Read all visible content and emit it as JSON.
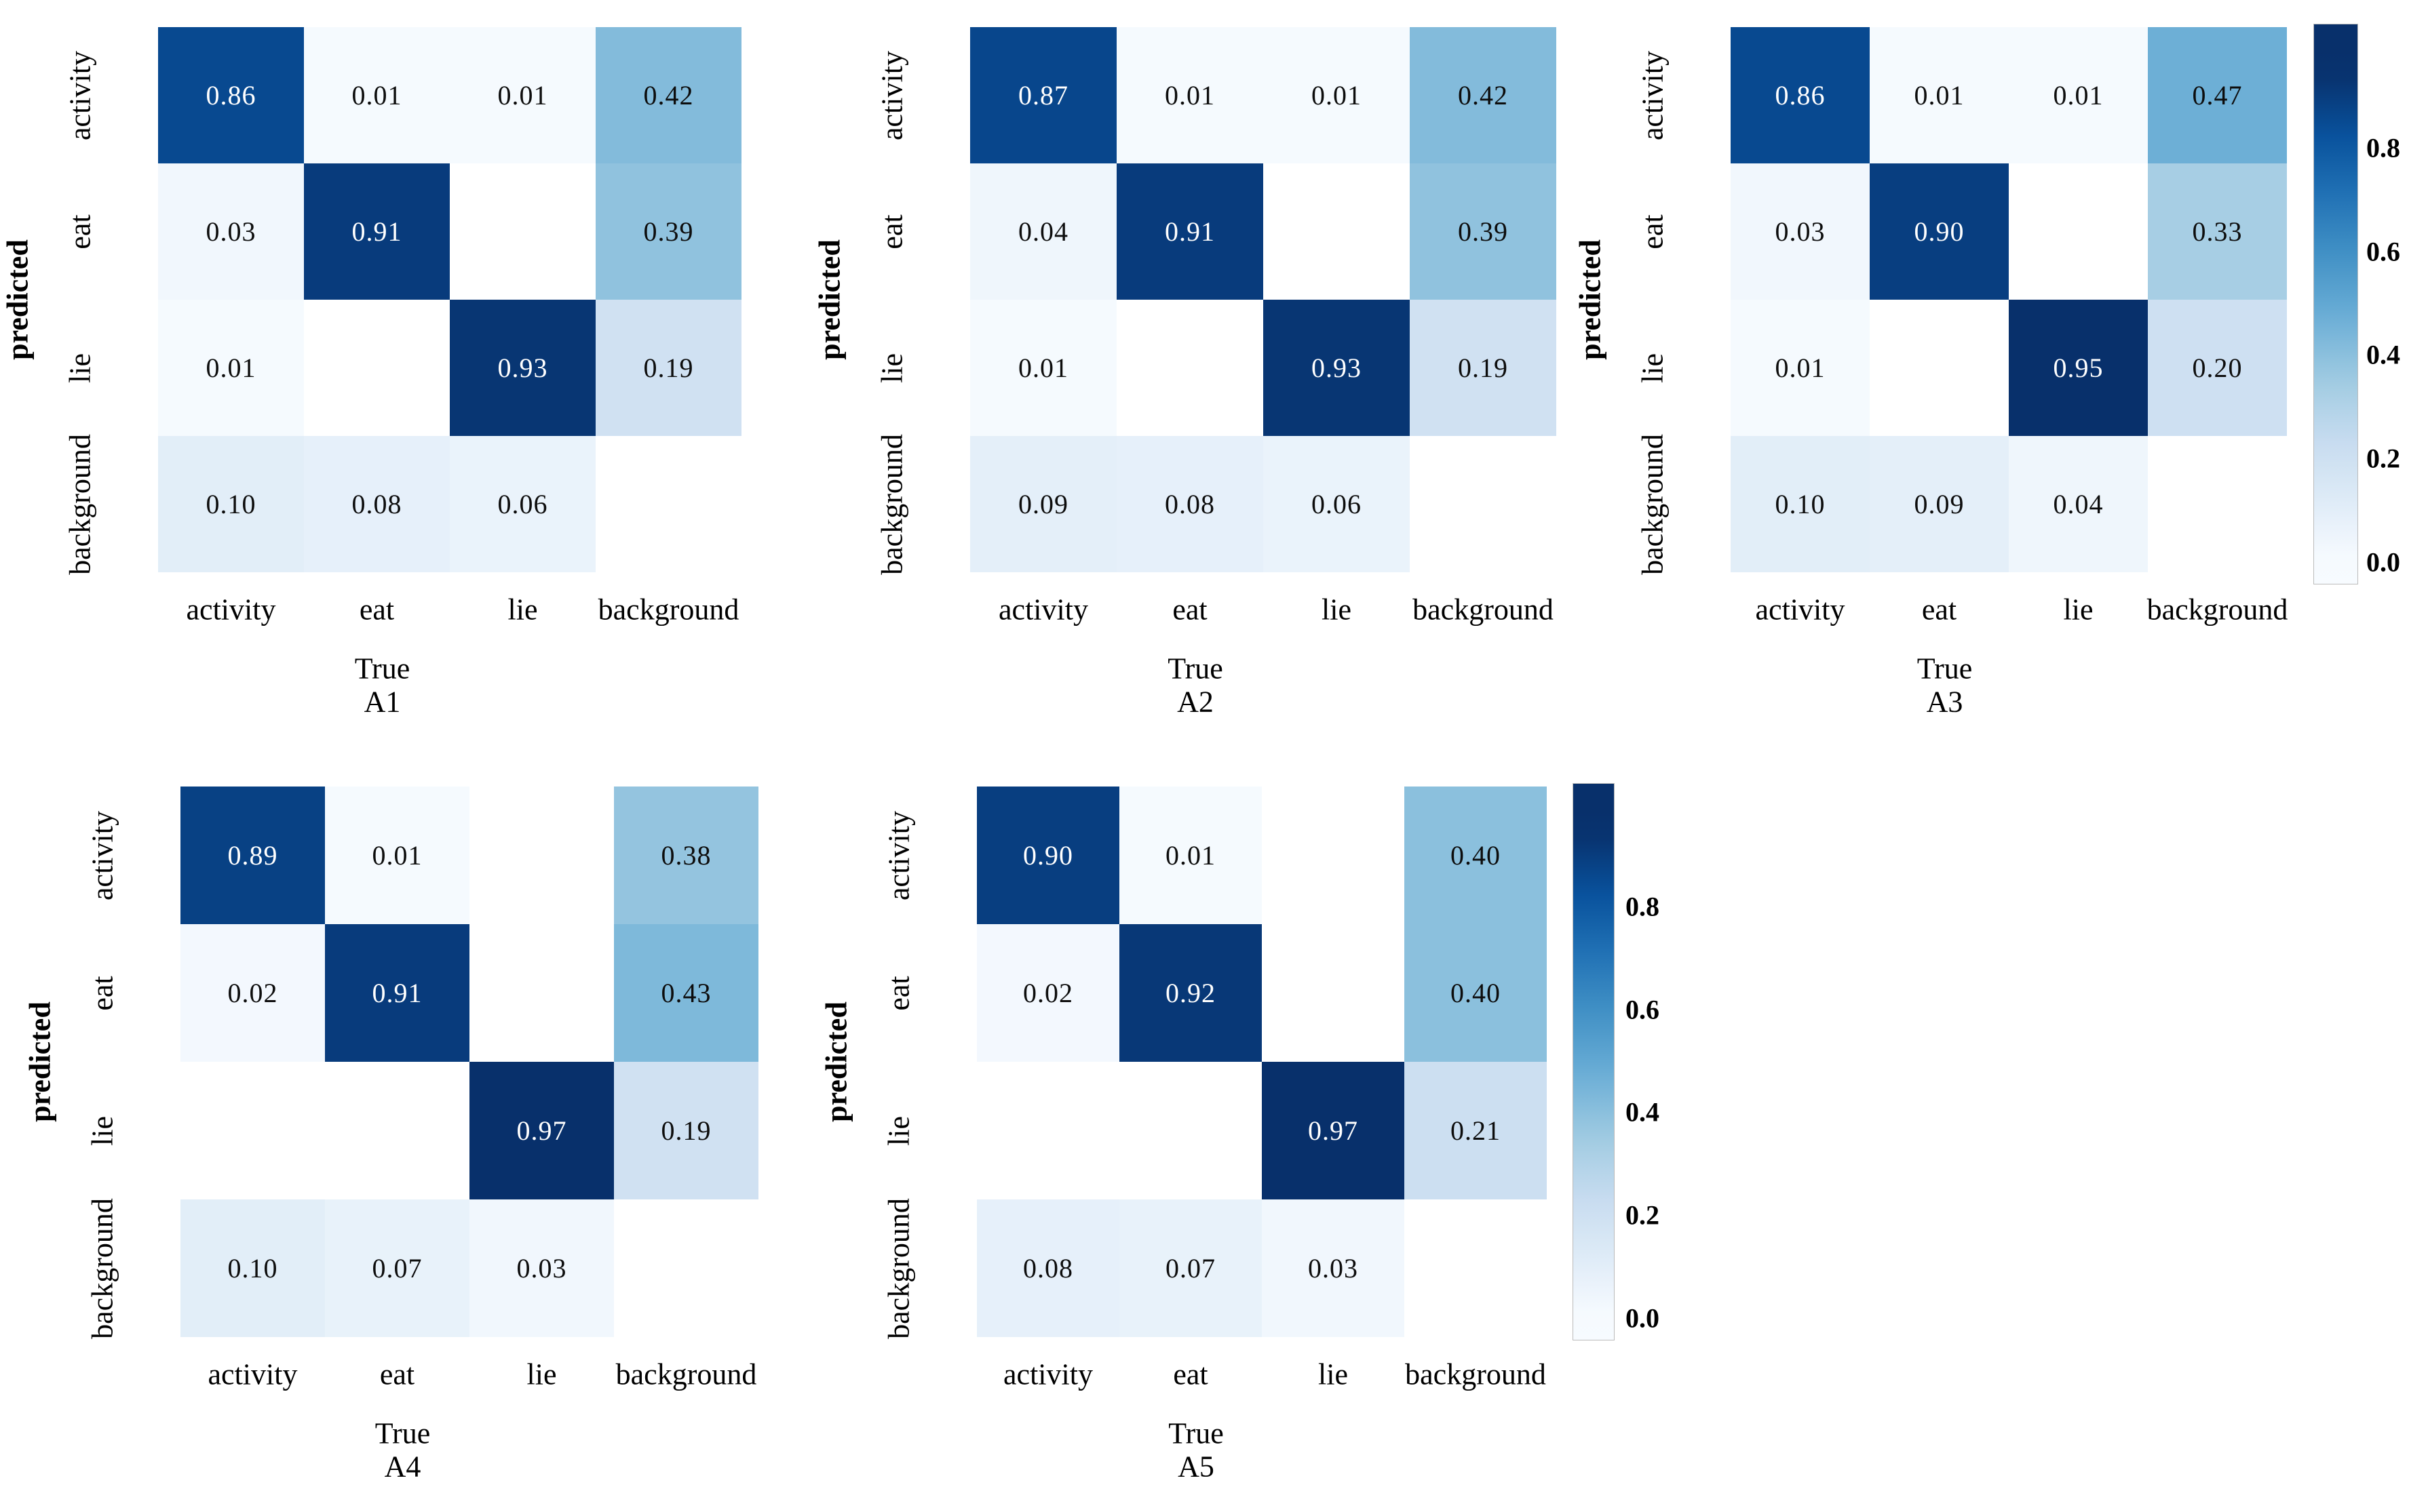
{
  "figure": {
    "type": "confusion-matrix-grid",
    "x_axis_label": "True",
    "y_axis_label": "predicted",
    "categories": [
      "activity",
      "eat",
      "lie",
      "background"
    ],
    "colorbar_ticks": [
      "0.8",
      "0.6",
      "0.4",
      "0.2",
      "0.0"
    ],
    "colormap": "Blues",
    "accent_dark_blue": "#08306b",
    "accent_light_blue": "#f7fbff"
  },
  "chart_data": [
    {
      "type": "heatmap",
      "title": "A1",
      "xlabel": "True",
      "ylabel": "predicted",
      "x_categories": [
        "activity",
        "eat",
        "lie",
        "background"
      ],
      "y_categories": [
        "activity",
        "eat",
        "lie",
        "background"
      ],
      "values": [
        [
          0.86,
          0.01,
          0.01,
          0.42
        ],
        [
          0.03,
          0.91,
          null,
          0.39
        ],
        [
          0.01,
          null,
          0.93,
          0.19
        ],
        [
          0.1,
          0.08,
          0.06,
          null
        ]
      ],
      "labels": [
        [
          "0.86",
          "0.01",
          "0.01",
          "0.42"
        ],
        [
          "0.03",
          "0.91",
          "",
          "0.39"
        ],
        [
          "0.01",
          "",
          "0.93",
          "0.19"
        ],
        [
          "0.10",
          "0.08",
          "0.06",
          ""
        ]
      ]
    },
    {
      "type": "heatmap",
      "title": "A2",
      "xlabel": "True",
      "ylabel": "predicted",
      "x_categories": [
        "activity",
        "eat",
        "lie",
        "background"
      ],
      "y_categories": [
        "activity",
        "eat",
        "lie",
        "background"
      ],
      "values": [
        [
          0.87,
          0.01,
          0.01,
          0.42
        ],
        [
          0.04,
          0.91,
          null,
          0.39
        ],
        [
          0.01,
          null,
          0.93,
          0.19
        ],
        [
          0.09,
          0.08,
          0.06,
          null
        ]
      ],
      "labels": [
        [
          "0.87",
          "0.01",
          "0.01",
          "0.42"
        ],
        [
          "0.04",
          "0.91",
          "",
          "0.39"
        ],
        [
          "0.01",
          "",
          "0.93",
          "0.19"
        ],
        [
          "0.09",
          "0.08",
          "0.06",
          ""
        ]
      ]
    },
    {
      "type": "heatmap",
      "title": "A3",
      "xlabel": "True",
      "ylabel": "predicted",
      "x_categories": [
        "activity",
        "eat",
        "lie",
        "background"
      ],
      "y_categories": [
        "activity",
        "eat",
        "lie",
        "background"
      ],
      "values": [
        [
          0.86,
          0.01,
          0.01,
          0.47
        ],
        [
          0.03,
          0.9,
          null,
          0.33
        ],
        [
          0.01,
          null,
          0.95,
          0.2
        ],
        [
          0.1,
          0.09,
          0.04,
          null
        ]
      ],
      "labels": [
        [
          "0.86",
          "0.01",
          "0.01",
          "0.47"
        ],
        [
          "0.03",
          "0.90",
          "",
          "0.33"
        ],
        [
          "0.01",
          "",
          "0.95",
          "0.20"
        ],
        [
          "0.10",
          "0.09",
          "0.04",
          ""
        ]
      ],
      "has_colorbar": true
    },
    {
      "type": "heatmap",
      "title": "A4",
      "xlabel": "True",
      "ylabel": "predicted",
      "x_categories": [
        "activity",
        "eat",
        "lie",
        "background"
      ],
      "y_categories": [
        "activity",
        "eat",
        "lie",
        "background"
      ],
      "values": [
        [
          0.89,
          0.01,
          null,
          0.38
        ],
        [
          0.02,
          0.91,
          null,
          0.43
        ],
        [
          null,
          null,
          0.97,
          0.19
        ],
        [
          0.1,
          0.07,
          0.03,
          null
        ]
      ],
      "labels": [
        [
          "0.89",
          "0.01",
          "",
          "0.38"
        ],
        [
          "0.02",
          "0.91",
          "",
          "0.43"
        ],
        [
          "",
          "",
          "0.97",
          "0.19"
        ],
        [
          "0.10",
          "0.07",
          "0.03",
          ""
        ]
      ]
    },
    {
      "type": "heatmap",
      "title": "A5",
      "xlabel": "True",
      "ylabel": "predicted",
      "x_categories": [
        "activity",
        "eat",
        "lie",
        "background"
      ],
      "y_categories": [
        "activity",
        "eat",
        "lie",
        "background"
      ],
      "values": [
        [
          0.9,
          0.01,
          null,
          0.4
        ],
        [
          0.02,
          0.92,
          null,
          0.4
        ],
        [
          null,
          null,
          0.97,
          0.21
        ],
        [
          0.08,
          0.07,
          0.03,
          null
        ]
      ],
      "labels": [
        [
          "0.90",
          "0.01",
          "",
          "0.40"
        ],
        [
          "0.02",
          "0.92",
          "",
          "0.40"
        ],
        [
          "",
          "",
          "0.97",
          "0.21"
        ],
        [
          "0.08",
          "0.07",
          "0.03",
          ""
        ]
      ],
      "has_colorbar": true
    }
  ]
}
